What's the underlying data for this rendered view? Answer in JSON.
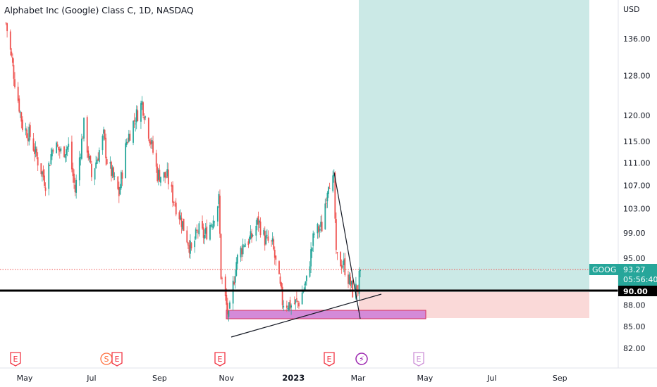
{
  "header": {
    "title": "Alphabet Inc (Google) Class C, 1D, NASDAQ"
  },
  "price_axis": {
    "currency": "USD",
    "ticks": [
      "136.00",
      "128.00",
      "120.00",
      "115.00",
      "111.00",
      "107.00",
      "103.00",
      "99.00",
      "95.00",
      "88.00",
      "85.00",
      "82.00"
    ]
  },
  "time_axis": {
    "ticks": [
      "May",
      "Jul",
      "Sep",
      "Nov",
      "2023",
      "Mar",
      "May",
      "Jul",
      "Sep"
    ]
  },
  "labels": {
    "symbol": "GOOG",
    "last_price": "93.27",
    "countdown": "05:56:40",
    "level_label": "90.00"
  },
  "events": [
    {
      "letter": "E",
      "kind": "earnings"
    },
    {
      "letter": "S",
      "kind": "split"
    },
    {
      "letter": "E",
      "kind": "earnings"
    },
    {
      "letter": "E",
      "kind": "earnings"
    },
    {
      "letter": "E",
      "kind": "earnings"
    },
    {
      "letter": "⚡",
      "kind": "news"
    },
    {
      "letter": "E",
      "kind": "earnings-upcoming"
    }
  ],
  "colors": {
    "up": "#26a69a",
    "down": "#ef5350",
    "profit_zone": "#cbe9e6",
    "loss_zone": "#fad9d8",
    "support_box": "#d48ad8",
    "support_box_border": "#d9305b",
    "last_price_badge": "#26a69a",
    "event_red": "#f23645",
    "event_purple": "#9c27b0",
    "event_orange": "#ff6d3b",
    "event_pale_purple": "#ce93d8"
  },
  "chart_data": {
    "type": "candlestick",
    "symbol": "GOOG",
    "interval": "1D",
    "y_scale": "log",
    "ylim": [
      80.0,
      141.0
    ],
    "x_range": [
      "2022-04-14",
      "2023-10-01"
    ],
    "key_level": 90.0,
    "last_price": 93.27,
    "ohlc_anchor_path": [
      [
        "2022-04-14",
        139.5
      ],
      [
        "2022-04-22",
        127.0
      ],
      [
        "2022-04-29",
        118.0
      ],
      [
        "2022-05-06",
        116.0
      ],
      [
        "2022-05-12",
        112.0
      ],
      [
        "2022-05-20",
        107.5
      ],
      [
        "2022-05-27",
        114.5
      ],
      [
        "2022-06-03",
        113.0
      ],
      [
        "2022-06-10",
        114.0
      ],
      [
        "2022-06-16",
        106.0
      ],
      [
        "2022-06-24",
        118.0
      ],
      [
        "2022-07-01",
        108.5
      ],
      [
        "2022-07-12",
        116.0
      ],
      [
        "2022-07-15",
        111.5
      ],
      [
        "2022-07-26",
        105.5
      ],
      [
        "2022-08-02",
        115.0
      ],
      [
        "2022-08-08",
        118.5
      ],
      [
        "2022-08-16",
        122.5
      ],
      [
        "2022-08-24",
        115.0
      ],
      [
        "2022-08-30",
        109.0
      ],
      [
        "2022-09-08",
        108.5
      ],
      [
        "2022-09-13",
        105.0
      ],
      [
        "2022-09-22",
        100.5
      ],
      [
        "2022-09-30",
        96.0
      ],
      [
        "2022-10-06",
        99.5
      ],
      [
        "2022-10-12",
        98.5
      ],
      [
        "2022-10-20",
        101.5
      ],
      [
        "2022-10-25",
        104.5
      ],
      [
        "2022-10-27",
        92.5
      ],
      [
        "2022-11-03",
        86.0
      ],
      [
        "2022-11-10",
        94.5
      ],
      [
        "2022-11-17",
        97.5
      ],
      [
        "2022-11-23",
        98.0
      ],
      [
        "2022-11-30",
        101.0
      ],
      [
        "2022-12-06",
        98.0
      ],
      [
        "2022-12-13",
        97.0
      ],
      [
        "2022-12-22",
        88.5
      ],
      [
        "2022-12-30",
        88.0
      ],
      [
        "2023-01-06",
        88.5
      ],
      [
        "2023-01-13",
        91.5
      ],
      [
        "2023-01-20",
        99.0
      ],
      [
        "2023-01-27",
        100.0
      ],
      [
        "2023-02-02",
        108.0
      ],
      [
        "2023-02-07",
        107.5
      ],
      [
        "2023-02-09",
        95.0
      ],
      [
        "2023-02-16",
        94.0
      ],
      [
        "2023-02-24",
        90.0
      ],
      [
        "2023-03-01",
        90.5
      ],
      [
        "2023-03-03",
        93.27
      ]
    ]
  }
}
